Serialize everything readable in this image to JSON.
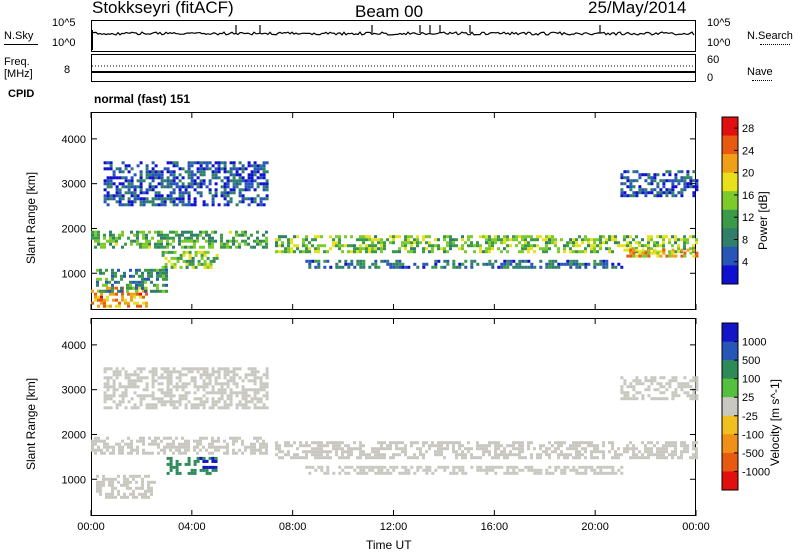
{
  "header": {
    "station": "Stokkseyri (fitACF)",
    "beam": "Beam 00",
    "date": "25/May/2014"
  },
  "top_panels": {
    "nsky_label": "N.Sky",
    "nsearch_label": "N.Search",
    "noise_ticks_left": [
      "10^5",
      "10^0"
    ],
    "noise_ticks_right": [
      "10^5",
      "10^0"
    ],
    "freq_label": "Freq.",
    "freq_unit": "[MHz]",
    "freq_ticks": [
      "8"
    ],
    "nave_label": "Nave",
    "nave_ticks": [
      "60",
      "0"
    ],
    "cpid_label": "CPID",
    "cpid_text": "normal (fast) 151"
  },
  "colors": {
    "power_scale": [
      "#1010d0",
      "#2855b8",
      "#2f7f6a",
      "#3a9a4a",
      "#7ccb2a",
      "#e8e01a",
      "#f0a018",
      "#e85a10",
      "#e01010"
    ],
    "velocity_scale": [
      "#1515c8",
      "#2855b8",
      "#2f8a5a",
      "#55c040",
      "#c8c8c0",
      "#f0c020",
      "#f09018",
      "#e85a10",
      "#e01010"
    ]
  },
  "chart_data": [
    {
      "type": "heatmap",
      "name": "power",
      "ylabel": "Slant Range [km]",
      "xlabel": "Time UT",
      "x_ticks": [
        "00:00",
        "04:00",
        "08:00",
        "12:00",
        "16:00",
        "20:00",
        "00:00"
      ],
      "y_ticks": [
        "1000",
        "2000",
        "3000",
        "4000"
      ],
      "xlim": [
        0,
        24
      ],
      "ylim": [
        180,
        4600
      ],
      "colorbar_label": "Power [dB]",
      "colorbar_ticks": [
        "4",
        "8",
        "12",
        "16",
        "20",
        "24",
        "28"
      ],
      "colorbar_range": [
        0,
        30
      ],
      "bands": [
        {
          "t0": 0.0,
          "t1": 2.2,
          "r0": 250,
          "r1": 700,
          "value": 22
        },
        {
          "t0": 0.2,
          "t1": 3.0,
          "r0": 600,
          "r1": 1100,
          "value": 10
        },
        {
          "t0": 0.0,
          "t1": 7.0,
          "r0": 1550,
          "r1": 1950,
          "value": 12
        },
        {
          "t0": 2.8,
          "t1": 5.0,
          "r0": 1100,
          "r1": 1500,
          "value": 14
        },
        {
          "t0": 7.3,
          "t1": 24.0,
          "r0": 1450,
          "r1": 1850,
          "value": 14
        },
        {
          "t0": 8.5,
          "t1": 21.0,
          "r0": 1100,
          "r1": 1300,
          "value": 7
        },
        {
          "t0": 21.0,
          "t1": 24.0,
          "r0": 1350,
          "r1": 1550,
          "value": 20
        },
        {
          "t0": 0.5,
          "t1": 7.0,
          "r0": 2500,
          "r1": 3500,
          "value": 5
        },
        {
          "t0": 21.0,
          "t1": 24.0,
          "r0": 2700,
          "r1": 3300,
          "value": 5
        }
      ]
    },
    {
      "type": "heatmap",
      "name": "velocity",
      "ylabel": "Slant Range [km]",
      "xlabel": "Time UT",
      "x_ticks": [
        "00:00",
        "04:00",
        "08:00",
        "12:00",
        "16:00",
        "20:00",
        "00:00"
      ],
      "y_ticks": [
        "1000",
        "2000",
        "3000",
        "4000"
      ],
      "xlim": [
        0,
        24
      ],
      "ylim": [
        180,
        4600
      ],
      "colorbar_label": "Velocity [m s^-1]",
      "colorbar_ticks": [
        "1000",
        "500",
        "100",
        "25",
        "-25",
        "-100",
        "-500",
        "-1000"
      ],
      "bands": [
        {
          "t0": 0.0,
          "t1": 7.0,
          "r0": 1550,
          "r1": 1950,
          "value": 0
        },
        {
          "t0": 7.3,
          "t1": 24.0,
          "r0": 1450,
          "r1": 1850,
          "value": 0
        },
        {
          "t0": 8.5,
          "t1": 21.0,
          "r0": 1100,
          "r1": 1300,
          "value": 0
        },
        {
          "t0": 0.2,
          "t1": 2.5,
          "r0": 600,
          "r1": 1100,
          "value": 0
        },
        {
          "t0": 3.0,
          "t1": 5.0,
          "r0": 1150,
          "r1": 1500,
          "value": 300
        },
        {
          "t0": 4.3,
          "t1": 5.0,
          "r0": 1250,
          "r1": 1500,
          "value": 700
        },
        {
          "t0": 0.5,
          "t1": 7.0,
          "r0": 2600,
          "r1": 3500,
          "value": 0
        },
        {
          "t0": 21.0,
          "t1": 24.0,
          "r0": 2800,
          "r1": 3300,
          "value": 0
        }
      ]
    }
  ]
}
